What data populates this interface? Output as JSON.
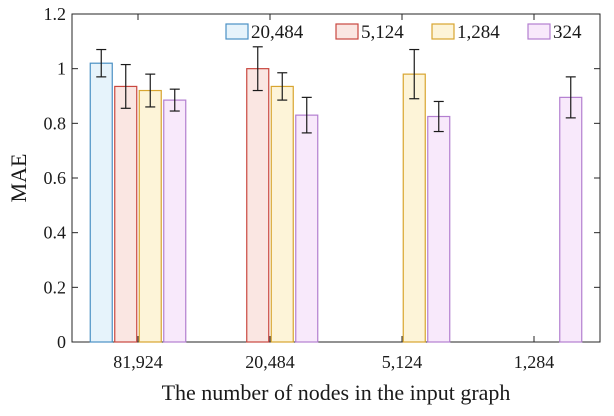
{
  "chart_data": {
    "type": "bar",
    "title": "",
    "xlabel": "The number of nodes in the input graph",
    "ylabel": "MAE",
    "ylim": [
      0,
      1.2
    ],
    "yticks": [
      0,
      0.2,
      0.4,
      0.6,
      0.8,
      1,
      1.2
    ],
    "ytick_labels": [
      "0",
      "0.2",
      "0.4",
      "0.6",
      "0.8",
      "1",
      "1.2"
    ],
    "grid": false,
    "legend_position": "top-right",
    "categories": [
      "81,924",
      "20,484",
      "5,124",
      "1,284"
    ],
    "series": [
      {
        "name": "20,484",
        "edge_color": "#4a90c4",
        "fill_color": "#e6f3fb",
        "values": [
          1.02,
          0,
          0,
          0
        ],
        "errors": [
          0.05,
          0,
          0,
          0
        ]
      },
      {
        "name": "5,124",
        "edge_color": "#c9473f",
        "fill_color": "#fae6e2",
        "values": [
          0.935,
          1.0,
          0,
          0
        ],
        "errors": [
          0.08,
          0.08,
          0,
          0
        ]
      },
      {
        "name": "1,284",
        "edge_color": "#d8a530",
        "fill_color": "#fdf4d8",
        "values": [
          0.92,
          0.935,
          0.98,
          0
        ],
        "errors": [
          0.06,
          0.05,
          0.09,
          0
        ]
      },
      {
        "name": "324",
        "edge_color": "#b37fd0",
        "fill_color": "#f8e9fb",
        "values": [
          0.885,
          0.83,
          0.825,
          0.895
        ],
        "errors": [
          0.04,
          0.065,
          0.055,
          0.075
        ]
      }
    ]
  }
}
